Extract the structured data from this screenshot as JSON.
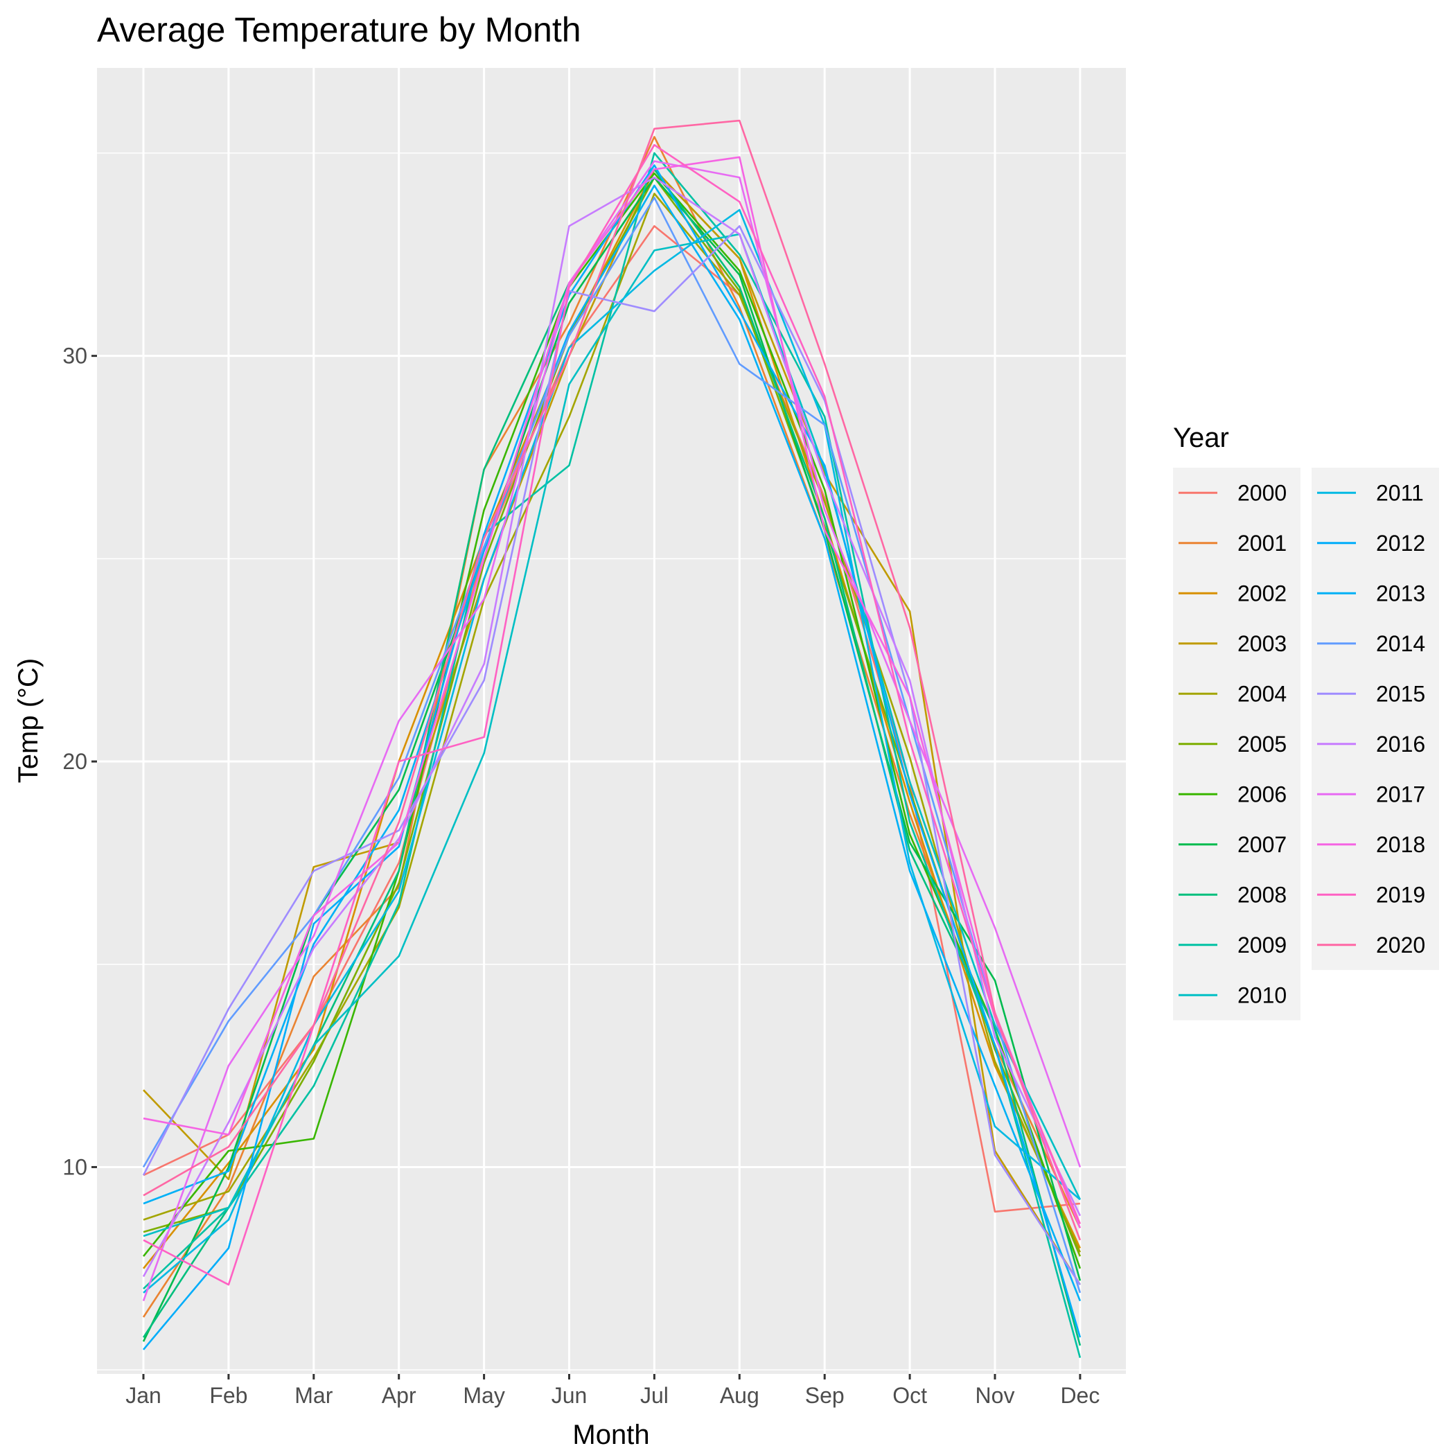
{
  "chart_data": {
    "type": "line",
    "title": "Average Temperature by Month",
    "xlabel": "Month",
    "ylabel": "Temp (°C)",
    "categories": [
      "Jan",
      "Feb",
      "Mar",
      "Apr",
      "May",
      "Jun",
      "Jul",
      "Aug",
      "Sep",
      "Oct",
      "Nov",
      "Dec"
    ],
    "yticks": [
      10,
      20,
      30
    ],
    "ylim": [
      4.9,
      37.1
    ],
    "grid": true,
    "legend_title": "Year",
    "legend_position": "right",
    "series": [
      {
        "name": "2000",
        "color": "#F8766D",
        "values": [
          9.8,
          10.8,
          13.5,
          17.5,
          25.2,
          30.2,
          33.2,
          31.5,
          26.5,
          19.5,
          8.9,
          9.1
        ]
      },
      {
        "name": "2001",
        "color": "#EA8331",
        "values": [
          6.3,
          9.5,
          14.7,
          16.9,
          27.2,
          30.8,
          35.4,
          31.2,
          25.5,
          18.7,
          13.0,
          8.5
        ]
      },
      {
        "name": "2002",
        "color": "#D89000",
        "values": [
          7.5,
          10.1,
          12.9,
          20.0,
          25.5,
          30.5,
          34.6,
          32.4,
          26.0,
          19.0,
          12.5,
          8.0
        ]
      },
      {
        "name": "2003",
        "color": "#C09B00",
        "values": [
          11.9,
          9.7,
          17.4,
          18.0,
          24.5,
          30.0,
          34.6,
          32.4,
          27.1,
          23.7,
          10.4,
          7.1
        ]
      },
      {
        "name": "2004",
        "color": "#A3A500",
        "values": [
          8.7,
          9.4,
          12.7,
          16.4,
          24.0,
          28.5,
          34.0,
          31.5,
          26.4,
          20.1,
          12.6,
          7.9
        ]
      },
      {
        "name": "2005",
        "color": "#7CAE00",
        "values": [
          8.4,
          9.0,
          12.6,
          17.0,
          24.9,
          30.5,
          34.4,
          31.6,
          25.8,
          19.3,
          12.9,
          7.8
        ]
      },
      {
        "name": "2006",
        "color": "#39B600",
        "values": [
          7.8,
          10.4,
          10.7,
          17.3,
          26.2,
          31.7,
          34.5,
          32.1,
          26.7,
          18.2,
          13.4,
          7.5
        ]
      },
      {
        "name": "2007",
        "color": "#00BB4E",
        "values": [
          5.7,
          10.0,
          16.2,
          19.3,
          25.2,
          31.3,
          34.4,
          32.0,
          25.7,
          18.0,
          14.6,
          7.2
        ]
      },
      {
        "name": "2008",
        "color": "#00BF7D",
        "values": [
          5.8,
          9.0,
          13.0,
          17.3,
          27.2,
          31.8,
          34.6,
          31.7,
          26.0,
          17.8,
          13.4,
          5.6
        ]
      },
      {
        "name": "2009",
        "color": "#00C1A3",
        "values": [
          7.0,
          9.0,
          12.0,
          16.5,
          25.6,
          27.3,
          35.0,
          32.5,
          28.5,
          18.5,
          13.0,
          5.3
        ]
      },
      {
        "name": "2010",
        "color": "#00BFC4",
        "values": [
          8.3,
          9.0,
          13.0,
          15.2,
          20.2,
          29.3,
          32.6,
          33.0,
          27.2,
          19.5,
          13.5,
          9.2
        ]
      },
      {
        "name": "2011",
        "color": "#00B9E3",
        "values": [
          6.9,
          8.7,
          13.5,
          16.8,
          24.5,
          30.2,
          32.1,
          33.6,
          28.3,
          17.5,
          11.0,
          9.2
        ]
      },
      {
        "name": "2012",
        "color": "#00ADFA",
        "values": [
          5.5,
          8.0,
          16.0,
          17.9,
          25.6,
          31.5,
          34.7,
          31.1,
          27.3,
          19.2,
          13.0,
          5.8
        ]
      },
      {
        "name": "2013",
        "color": "#00B0F6",
        "values": [
          9.1,
          9.9,
          15.5,
          18.8,
          25.2,
          30.6,
          34.2,
          30.9,
          25.5,
          17.3,
          12.0,
          6.7
        ]
      },
      {
        "name": "2014",
        "color": "#619CFF",
        "values": [
          10.0,
          13.6,
          16.2,
          19.6,
          25.3,
          30.5,
          33.9,
          29.8,
          28.3,
          21.0,
          13.7,
          6.9
        ]
      },
      {
        "name": "2015",
        "color": "#9F8CFF",
        "values": [
          9.8,
          13.9,
          17.3,
          18.3,
          22.0,
          31.6,
          31.1,
          33.2,
          28.9,
          21.6,
          10.3,
          7.1
        ]
      },
      {
        "name": "2016",
        "color": "#C77CFF",
        "values": [
          7.3,
          11.1,
          15.4,
          18.1,
          22.4,
          33.2,
          34.4,
          33.0,
          27.0,
          22.0,
          13.2,
          8.8
        ]
      },
      {
        "name": "2017",
        "color": "#E76BF3",
        "values": [
          6.7,
          12.5,
          15.7,
          21.0,
          24.0,
          31.8,
          34.8,
          34.4,
          26.2,
          21.0,
          15.9,
          10.0
        ]
      },
      {
        "name": "2018",
        "color": "#F564E3",
        "values": [
          11.2,
          10.8,
          16.2,
          18.0,
          25.0,
          31.8,
          34.6,
          34.9,
          25.7,
          21.6,
          13.8,
          8.5
        ]
      },
      {
        "name": "2019",
        "color": "#FF61C3",
        "values": [
          8.2,
          7.1,
          13.5,
          20.0,
          20.6,
          31.7,
          35.2,
          33.8,
          29.0,
          20.5,
          13.7,
          8.6
        ]
      },
      {
        "name": "2020",
        "color": "#FF67A4",
        "values": [
          9.3,
          10.5,
          13.5,
          18.5,
          25.5,
          30.0,
          35.6,
          35.8,
          29.8,
          23.3,
          13.8,
          8.2
        ]
      }
    ]
  }
}
